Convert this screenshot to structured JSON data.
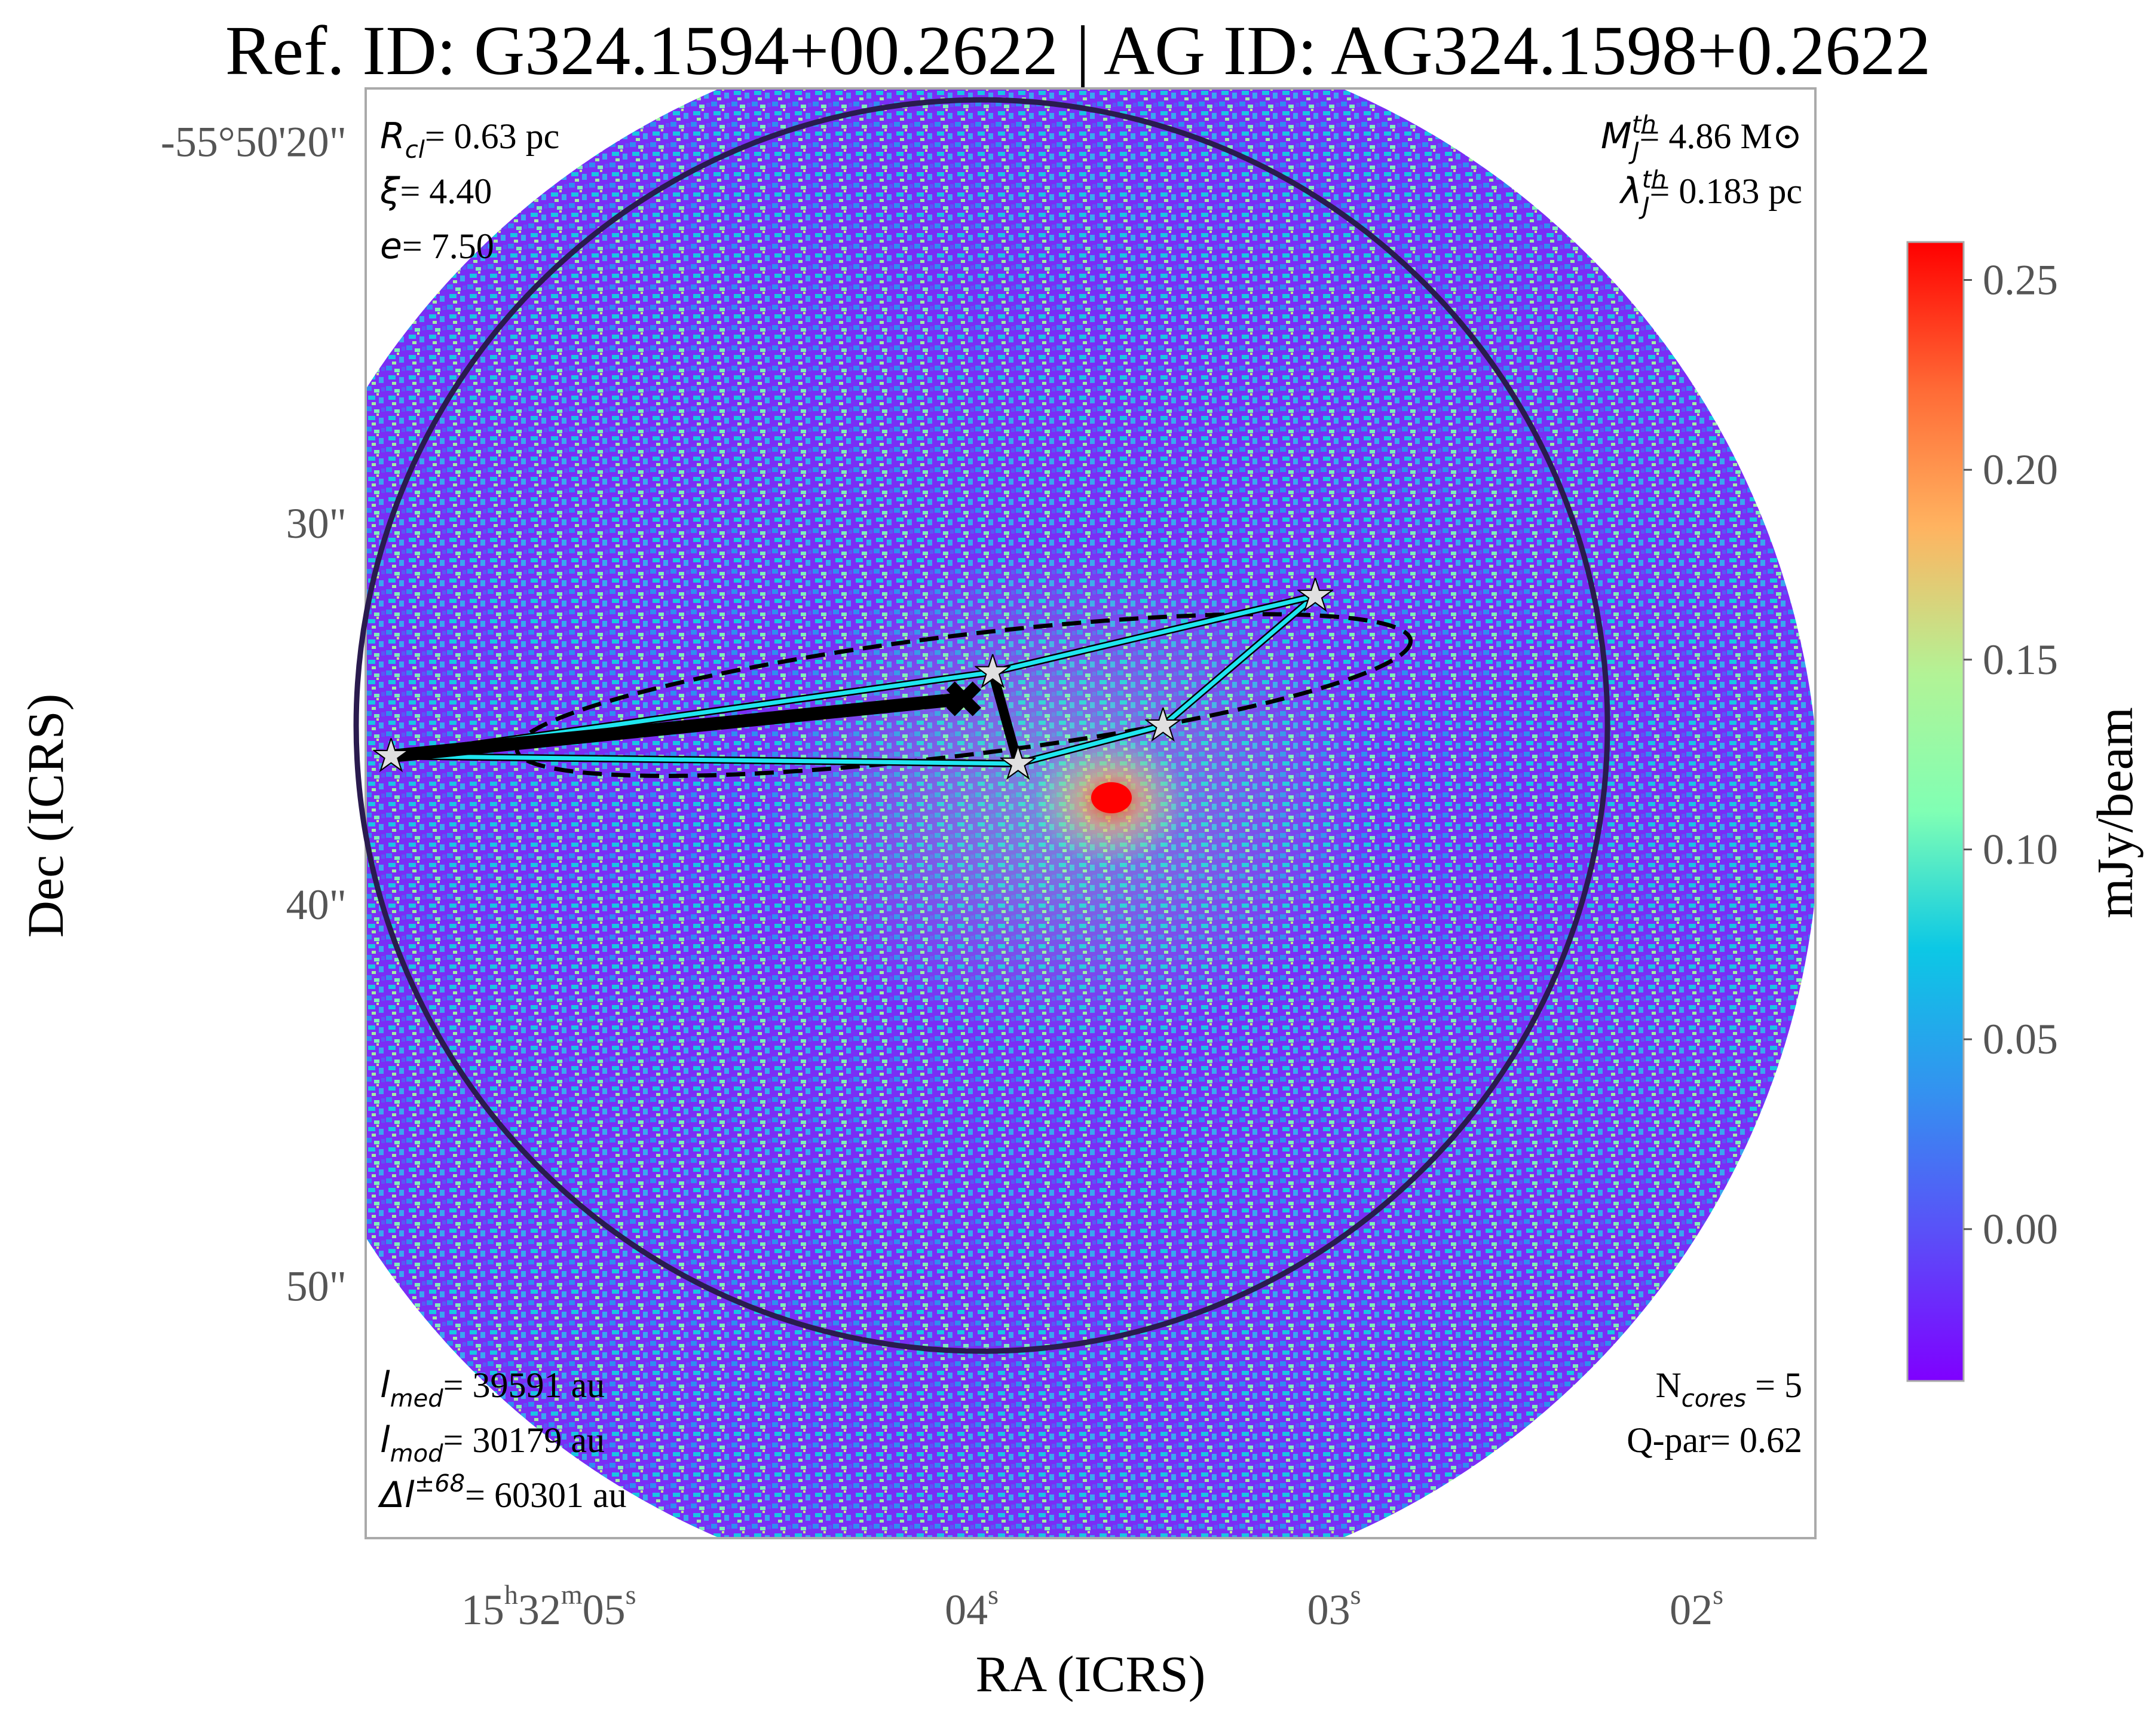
{
  "title": "Ref. ID: G324.1594+00.2622 | AG ID: AG324.1598+0.2622",
  "chart_data": {
    "type": "heatmap",
    "title": "Ref. ID: G324.1594+00.2622 | AG ID: AG324.1598+0.2622",
    "xlabel": "RA (ICRS)",
    "ylabel": "Dec (ICRS)",
    "x_ticks": [
      {
        "value": 5,
        "label": "15h32m05s"
      },
      {
        "value": 4,
        "label": "04s"
      },
      {
        "value": 3,
        "label": "03s"
      },
      {
        "value": 2,
        "label": "02s"
      }
    ],
    "y_ticks": [
      {
        "value": 20,
        "label": "-55°50'20\""
      },
      {
        "value": 30,
        "label": "30\""
      },
      {
        "value": 40,
        "label": "40\""
      },
      {
        "value": 50,
        "label": "50\""
      }
    ],
    "xlim": [
      5.7,
      1.7
    ],
    "ylim": [
      56.6,
      18.6
    ],
    "colorbar": {
      "label": "mJy/beam",
      "colormap": "rainbow",
      "range": [
        -0.04,
        0.26
      ],
      "ticks": [
        0.0,
        0.05,
        0.1,
        0.15,
        0.2,
        0.25
      ],
      "tick_labels": [
        "0.00",
        "0.05",
        "0.10",
        "0.15",
        "0.20",
        "0.25"
      ]
    },
    "cores": [
      {
        "ra_s": 5.63,
        "dec": 36.1
      },
      {
        "ra_s": 3.97,
        "dec": 33.9
      },
      {
        "ra_s": 3.9,
        "dec": 36.3
      },
      {
        "ra_s": 3.5,
        "dec": 35.3
      },
      {
        "ra_s": 3.08,
        "dec": 31.9
      }
    ],
    "centroid": {
      "ra_s": 4.05,
      "dec": 34.6
    },
    "mst_edges": [
      [
        0,
        2
      ],
      [
        0,
        1
      ],
      [
        1,
        2
      ],
      [
        2,
        3
      ],
      [
        3,
        4
      ],
      [
        1,
        4
      ]
    ],
    "cluster_circle": {
      "center_ra_s": 4.0,
      "center_dec": 35.3,
      "radius_arcsec": 16.4
    },
    "fit_ellipse": {
      "center_ra_s": 4.05,
      "center_dec": 34.5,
      "semi_major_arcsec": 11.8,
      "semi_minor_arcsec": 1.57,
      "angle_deg": 7
    },
    "annotations": {
      "top_left": [
        {
          "sym": "R",
          "sub": "cl",
          "value": "= 0.63 pc"
        },
        {
          "sym": "ξ",
          "value": "= 4.40"
        },
        {
          "sym": "e",
          "value": "= 7.50"
        }
      ],
      "top_right": [
        {
          "sym": "M",
          "sub": "J",
          "sup": "th",
          "value": "= 4.86 M⊙"
        },
        {
          "sym": "λ",
          "sub": "J",
          "sup": "th",
          "value": "= 0.183 pc"
        }
      ],
      "bottom_left": [
        {
          "sym": "l",
          "sub": "med",
          "value": "= 39591 au"
        },
        {
          "sym": "l",
          "sub": "mod",
          "value": "= 30179 au"
        },
        {
          "sym": "Δl",
          "sup": "±68",
          "value": "= 60301 au"
        }
      ],
      "bottom_right": [
        {
          "text": "N",
          "sub": "cores",
          "value": " = 5"
        },
        {
          "text": "Q-par",
          "value": "= 0.62"
        }
      ]
    }
  }
}
